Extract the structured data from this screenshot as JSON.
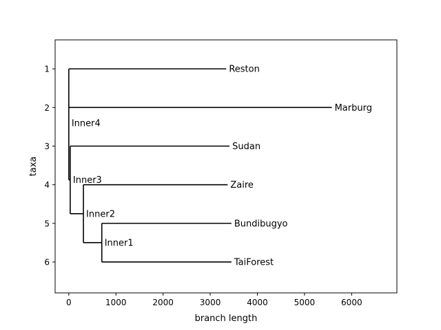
{
  "chart_data": {
    "type": "tree",
    "xlabel": "branch length",
    "ylabel": "taxa",
    "xlim": [
      -290,
      6960
    ],
    "ylim": [
      6.8,
      0.25
    ],
    "x_ticks": [
      0,
      1000,
      2000,
      3000,
      4000,
      5000,
      6000
    ],
    "y_ticks": [
      1,
      2,
      3,
      4,
      5,
      6
    ],
    "leaves": [
      {
        "name": "Reston",
        "x": 3340,
        "y": 1
      },
      {
        "name": "Marburg",
        "x": 5580,
        "y": 2
      },
      {
        "name": "Sudan",
        "x": 3410,
        "y": 3
      },
      {
        "name": "Zaire",
        "x": 3370,
        "y": 4
      },
      {
        "name": "Bundibugyo",
        "x": 3450,
        "y": 5
      },
      {
        "name": "TaiForest",
        "x": 3450,
        "y": 6
      }
    ],
    "internal_nodes": [
      {
        "name": "Inner1",
        "x": 700,
        "y": 5.5,
        "children": [
          "Bundibugyo",
          "TaiForest"
        ]
      },
      {
        "name": "Inner2",
        "x": 310,
        "y": 4.75,
        "children": [
          "Zaire",
          "Inner1"
        ]
      },
      {
        "name": "Inner3",
        "x": 30,
        "y": 3.875,
        "children": [
          "Sudan",
          "Inner2"
        ]
      },
      {
        "name": "Inner4",
        "x": 0,
        "y": 2.4,
        "children": [
          "Reston",
          "Marburg",
          "Inner3"
        ]
      }
    ],
    "line_color": "#000000"
  }
}
